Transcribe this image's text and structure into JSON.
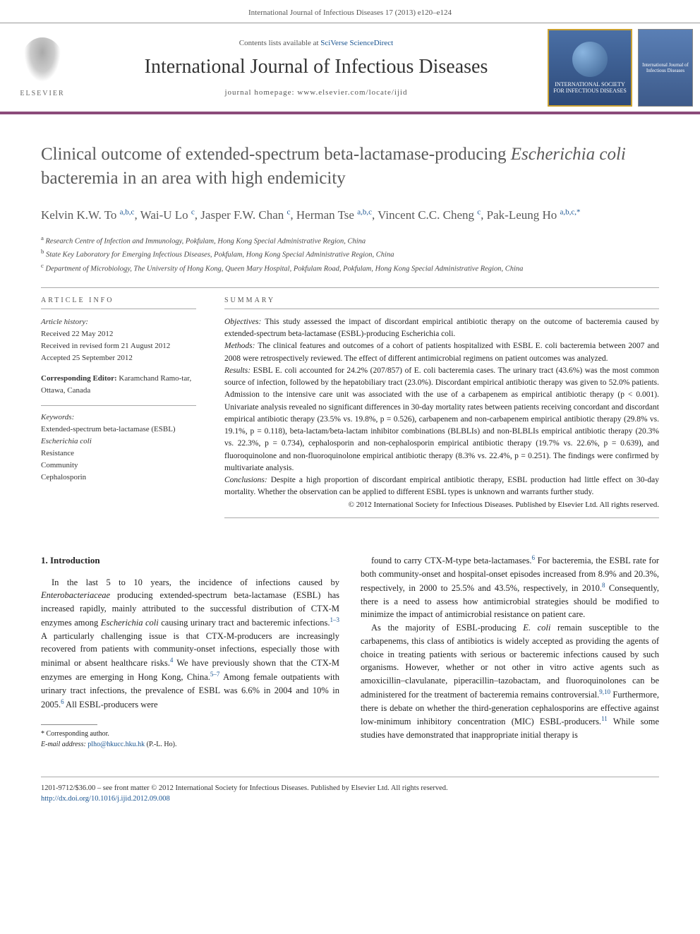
{
  "header": {
    "citation": "International Journal of Infectious Diseases 17 (2013) e120–e124"
  },
  "masthead": {
    "contents_prefix": "Contents lists available at ",
    "contents_link": "SciVerse ScienceDirect",
    "journal_title": "International Journal of Infectious Diseases",
    "homepage_prefix": "journal homepage: ",
    "homepage_url": "www.elsevier.com/locate/ijid",
    "elsevier_label": "ELSEVIER",
    "society_line1": "INTERNATIONAL SOCIETY",
    "society_line2": "FOR INFECTIOUS DISEASES",
    "cover_text": "International Journal of Infectious Diseases",
    "colors": {
      "rule": "#8B4B7A",
      "badge_bg_top": "#4a6fa5",
      "badge_bg_bottom": "#2d4a7a",
      "badge_border": "#c9a030"
    }
  },
  "article": {
    "title_a": "Clinical outcome of extended-spectrum beta-lactamase-producing ",
    "title_species": "Escherichia coli",
    "title_b": " bacteremia in an area with high endemicity",
    "authors_html": "Kelvin K.W. To <sup>a,b,c</sup>, Wai-U Lo <sup>c</sup>, Jasper F.W. Chan <sup>c</sup>, Herman Tse <sup>a,b,c</sup>, Vincent C.C. Cheng <sup>c</sup>, Pak-Leung Ho <sup>a,b,c,*</sup>",
    "affiliations": {
      "a": "Research Centre of Infection and Immunology, Pokfulam, Hong Kong Special Administrative Region, China",
      "b": "State Key Laboratory for Emerging Infectious Diseases, Pokfulam, Hong Kong Special Administrative Region, China",
      "c": "Department of Microbiology, The University of Hong Kong, Queen Mary Hospital, Pokfulam Road, Pokfulam, Hong Kong Special Administrative Region, China"
    }
  },
  "info": {
    "article_info_label": "ARTICLE INFO",
    "summary_label": "SUMMARY",
    "history_label": "Article history:",
    "received": "Received 22 May 2012",
    "revised": "Received in revised form 21 August 2012",
    "accepted": "Accepted 25 September 2012",
    "corr_editor_label": "Corresponding Editor:",
    "corr_editor": " Karamchand Ramo-tar, Ottawa, Canada",
    "keywords_label": "Keywords:",
    "keywords": [
      "Extended-spectrum beta-lactamase (ESBL)",
      "Escherichia coli",
      "Resistance",
      "Community",
      "Cephalosporin"
    ]
  },
  "summary": {
    "objectives_label": "Objectives:",
    "objectives": " This study assessed the impact of discordant empirical antibiotic therapy on the outcome of bacteremia caused by extended-spectrum beta-lactamase (ESBL)-producing Escherichia coli.",
    "methods_label": "Methods:",
    "methods": " The clinical features and outcomes of a cohort of patients hospitalized with ESBL E. coli bacteremia between 2007 and 2008 were retrospectively reviewed. The effect of different antimicrobial regimens on patient outcomes was analyzed.",
    "results_label": "Results:",
    "results": " ESBL E. coli accounted for 24.2% (207/857) of E. coli bacteremia cases. The urinary tract (43.6%) was the most common source of infection, followed by the hepatobiliary tract (23.0%). Discordant empirical antibiotic therapy was given to 52.0% patients. Admission to the intensive care unit was associated with the use of a carbapenem as empirical antibiotic therapy (p < 0.001). Univariate analysis revealed no significant differences in 30-day mortality rates between patients receiving concordant and discordant empirical antibiotic therapy (23.5% vs. 19.8%, p = 0.526), carbapenem and non-carbapenem empirical antibiotic therapy (29.8% vs. 19.1%, p = 0.118), beta-lactam/beta-lactam inhibitor combinations (BLBLIs) and non-BLBLIs empirical antibiotic therapy (20.3% vs. 22.3%, p = 0.734), cephalosporin and non-cephalosporin empirical antibiotic therapy (19.7% vs. 22.6%, p = 0.639), and fluoroquinolone and non-fluoroquinolone empirical antibiotic therapy (8.3% vs. 22.4%, p = 0.251). The findings were confirmed by multivariate analysis.",
    "conclusions_label": "Conclusions:",
    "conclusions": " Despite a high proportion of discordant empirical antibiotic therapy, ESBL production had little effect on 30-day mortality. Whether the observation can be applied to different ESBL types is unknown and warrants further study.",
    "copyright": "© 2012 International Society for Infectious Diseases. Published by Elsevier Ltd. All rights reserved."
  },
  "body": {
    "section_heading": "1. Introduction",
    "col1_para1": "In the last 5 to 10 years, the incidence of infections caused by Enterobacteriaceae producing extended-spectrum beta-lactamase (ESBL) has increased rapidly, mainly attributed to the successful distribution of CTX-M enzymes among Escherichia coli causing urinary tract and bacteremic infections.1–3 A particularly challenging issue is that CTX-M-producers are increasingly recovered from patients with community-onset infections, especially those with minimal or absent healthcare risks.4 We have previously shown that the CTX-M enzymes are emerging in Hong Kong, China.5–7 Among female outpatients with urinary tract infections, the prevalence of ESBL was 6.6% in 2004 and 10% in 2005.6 All ESBL-producers were",
    "col2_para1": "found to carry CTX-M-type beta-lactamases.6 For bacteremia, the ESBL rate for both community-onset and hospital-onset episodes increased from 8.9% and 20.3%, respectively, in 2000 to 25.5% and 43.5%, respectively, in 2010.8 Consequently, there is a need to assess how antimicrobial strategies should be modified to minimize the impact of antimicrobial resistance on patient care.",
    "col2_para2": "As the majority of ESBL-producing E. coli remain susceptible to the carbapenems, this class of antibiotics is widely accepted as providing the agents of choice in treating patients with serious or bacteremic infections caused by such organisms. However, whether or not other in vitro active agents such as amoxicillin–clavulanate, piperacillin–tazobactam, and fluoroquinolones can be administered for the treatment of bacteremia remains controversial.9,10 Furthermore, there is debate on whether the third-generation cephalosporins are effective against low-minimum inhibitory concentration (MIC) ESBL-producers.11 While some studies have demonstrated that inappropriate initial therapy is"
  },
  "footnote": {
    "corr_label": "* Corresponding author.",
    "email_label": "E-mail address:",
    "email": "plho@hkucc.hku.hk",
    "email_suffix": " (P.-L. Ho)."
  },
  "footer": {
    "line1": "1201-9712/$36.00 – see front matter © 2012 International Society for Infectious Diseases. Published by Elsevier Ltd. All rights reserved.",
    "doi_url": "http://dx.doi.org/10.1016/j.ijid.2012.09.008"
  }
}
